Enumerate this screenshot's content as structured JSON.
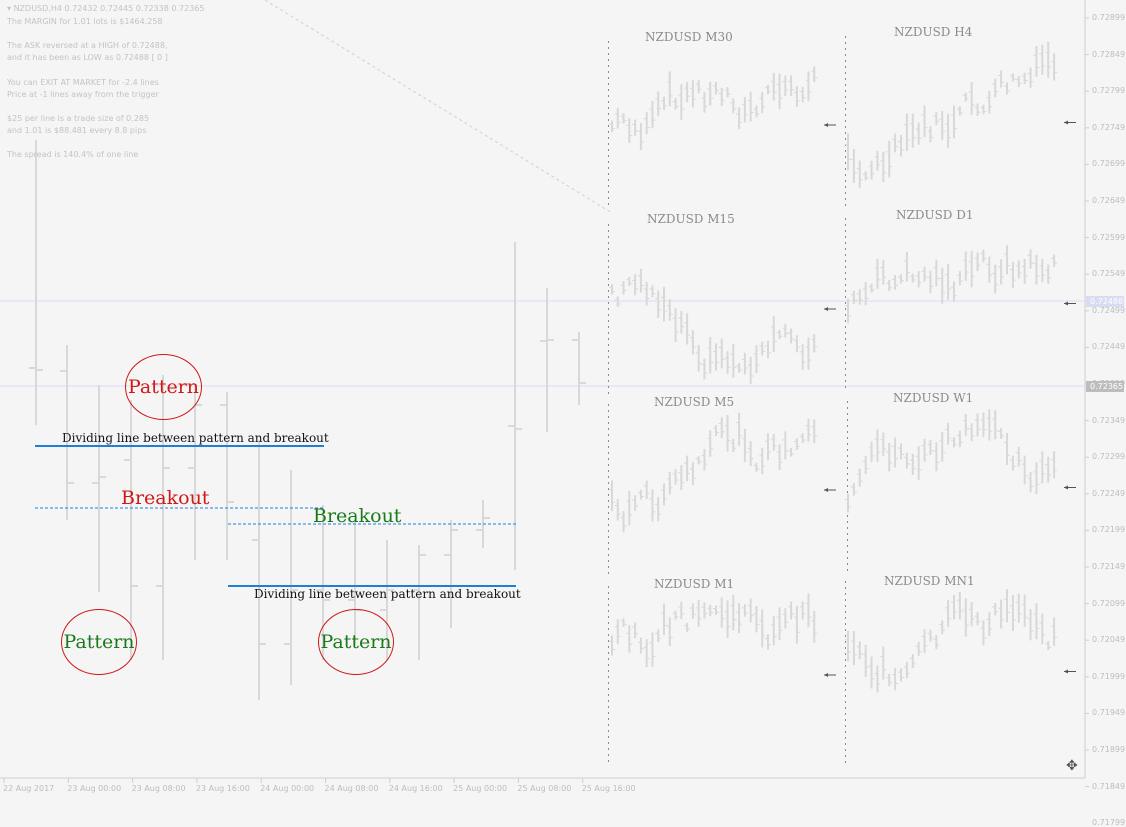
{
  "chart_header": {
    "symbol_line": "NZDUSD,H4  0.72432 0.72445 0.72338 0.72365",
    "info_lines": [
      "The MARGIN for 1.01 lots is $1464.258",
      "The ASK reversed at a HIGH of 0.72488,",
      "and it has been as LOW as 0.72488 [ 0 ]",
      "You can EXIT AT MARKET for -2.4 lines",
      "Price at -1 lines away from the trigger",
      "$25 per line is a trade size of 0.285",
      "and 1.01 is $88.481 every 8.8 pips",
      "The spread is 140.4% of one line"
    ]
  },
  "price_axis": {
    "labels": [
      "0.72899",
      "0.72849",
      "0.72799",
      "0.72749",
      "0.72699",
      "0.72649",
      "0.72599",
      "0.72549",
      "0.72499",
      "0.72449",
      "0.72399",
      "0.72349",
      "0.72299",
      "0.72249",
      "0.72199",
      "0.72149",
      "0.72099",
      "0.72049",
      "0.71999",
      "0.71949",
      "0.71899",
      "0.71849",
      "0.71799"
    ],
    "bid_tag": "0.72365",
    "ask_tag": "0.72488"
  },
  "time_axis": {
    "labels": [
      "22 Aug 2017",
      "23 Aug 00:00",
      "23 Aug 08:00",
      "23 Aug 16:00",
      "24 Aug 00:00",
      "24 Aug 08:00",
      "24 Aug 16:00",
      "25 Aug 00:00",
      "25 Aug 08:00",
      "25 Aug 16:00"
    ]
  },
  "panels": [
    {
      "id": "m30",
      "title": "NZDUSD M30"
    },
    {
      "id": "h4",
      "title": "NZDUSD H4"
    },
    {
      "id": "m15",
      "title": "NZDUSD M15"
    },
    {
      "id": "d1",
      "title": "NZDUSD D1"
    },
    {
      "id": "m5",
      "title": "NZDUSD M5"
    },
    {
      "id": "w1",
      "title": "NZDUSD W1"
    },
    {
      "id": "m1",
      "title": "NZDUSD M1"
    },
    {
      "id": "mn1",
      "title": "NZDUSD MN1"
    }
  ],
  "annotations": {
    "pattern": "Pattern",
    "breakout": "Breakout",
    "divider": "Dividing line between pattern and breakout"
  },
  "colors": {
    "red": "#d01818",
    "green": "#1a7a1a",
    "blue": "#1e7fd8",
    "bars": "#d6d6d6",
    "background": "#f5f5f5"
  }
}
